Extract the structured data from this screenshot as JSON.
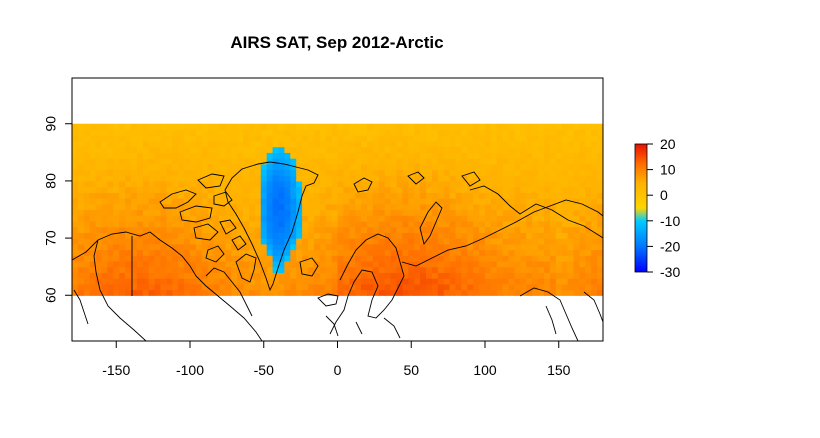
{
  "chart_data": {
    "type": "heatmap",
    "title": "AIRS SAT, Sep 2012-Arctic",
    "xlabel": "",
    "ylabel": "",
    "xlim": [
      -180,
      180
    ],
    "ylim": [
      52,
      98
    ],
    "data_lat_range": [
      60,
      90
    ],
    "data_lon_range": [
      -180,
      180
    ],
    "x_ticks": [
      -150,
      -100,
      -50,
      0,
      50,
      100,
      150
    ],
    "y_ticks": [
      60,
      70,
      80,
      90
    ],
    "colorbar": {
      "min": -30,
      "max": 20,
      "ticks": [
        20,
        10,
        0,
        -10,
        -20,
        -30
      ],
      "stops": [
        {
          "value": -30,
          "color": "#0000ff"
        },
        {
          "value": -20,
          "color": "#0077ff"
        },
        {
          "value": -10,
          "color": "#00ccff"
        },
        {
          "value": -5,
          "color": "#ffd500"
        },
        {
          "value": 5,
          "color": "#ffb000"
        },
        {
          "value": 12,
          "color": "#ff7000"
        },
        {
          "value": 20,
          "color": "#e81000"
        }
      ]
    },
    "field_description": "Surface air temperature anomaly field: about 0 to 5 near the pole, rising to about 10 to 13 near 60N; Greenland ice sheet about -10 to -20; grid on: false; legend: colorbar right"
  }
}
